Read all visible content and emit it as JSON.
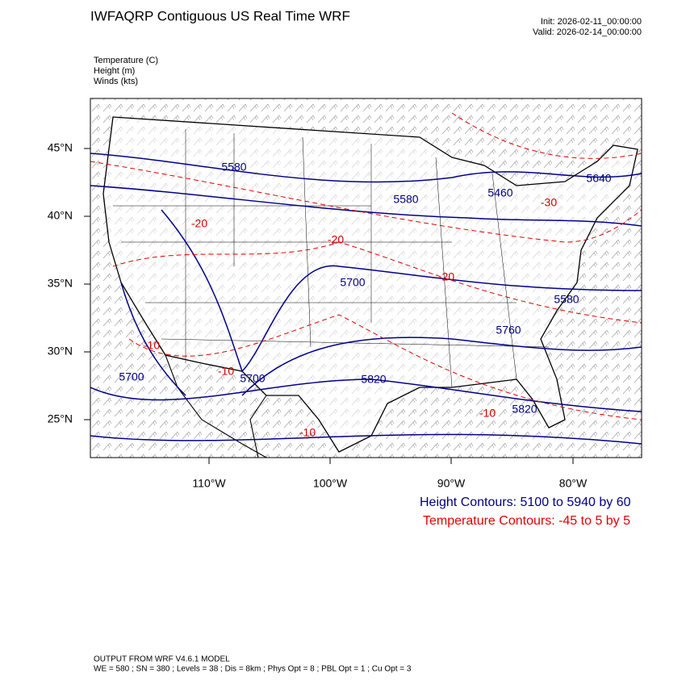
{
  "header": {
    "title": "IWFAQRP Contiguous US Real Time WRF",
    "init": "Init: 2026-02-11_00:00:00",
    "valid": "Valid: 2026-02-14_00:00:00"
  },
  "fields": [
    "Temperature   (C)",
    "Height   (m)",
    "Winds   (kts)"
  ],
  "map": {
    "lat_labels": [
      "45°N",
      "40°N",
      "35°N",
      "30°N",
      "25°N"
    ],
    "lon_labels": [
      "110°W",
      "100°W",
      "90°W",
      "80°W"
    ],
    "height_labels": [
      "5580",
      "5580",
      "5460",
      "5640",
      "5700",
      "5580",
      "5760",
      "5700",
      "5700",
      "5820",
      "5820"
    ],
    "temp_labels": [
      "-20",
      "-20",
      "-30",
      "-20",
      "-10",
      "-10",
      "-10",
      "-10"
    ]
  },
  "legend": {
    "height": "Height Contours: 5100 to 5940 by 60",
    "temperature": "Temperature Contours: -45 to 5 by 5"
  },
  "footer": {
    "line1": "OUTPUT FROM WRF V4.6.1 MODEL",
    "line2": "WE = 580 ; SN = 380 ; Levels = 38 ; Dis = 8km ; Phys Opt = 8 ; PBL Opt = 1 ; Cu Opt = 3"
  }
}
